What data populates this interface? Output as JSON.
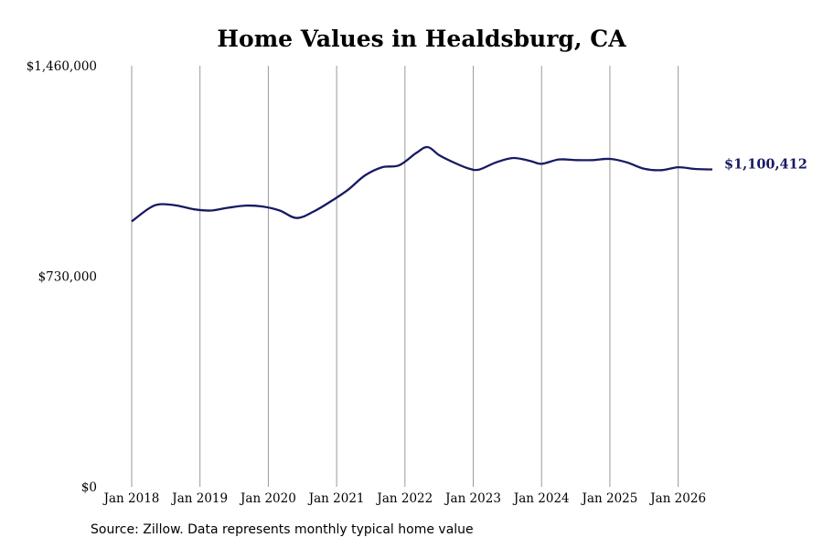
{
  "chart_data": {
    "type": "line",
    "title": "Home Values in Healdsburg, CA",
    "xlabel": "",
    "ylabel": "",
    "ylim": [
      0,
      1460000
    ],
    "y_ticks": [
      {
        "value": 0,
        "label": "$0"
      },
      {
        "value": 730000,
        "label": "$730,000"
      },
      {
        "value": 1460000,
        "label": "$1,460,000"
      }
    ],
    "x_ticks": [
      {
        "value": "2018-01",
        "label": "Jan 2018"
      },
      {
        "value": "2019-01",
        "label": "Jan 2019"
      },
      {
        "value": "2020-01",
        "label": "Jan 2020"
      },
      {
        "value": "2021-01",
        "label": "Jan 2021"
      },
      {
        "value": "2022-01",
        "label": "Jan 2022"
      },
      {
        "value": "2023-01",
        "label": "Jan 2023"
      },
      {
        "value": "2024-01",
        "label": "Jan 2024"
      },
      {
        "value": "2025-01",
        "label": "Jan 2025"
      },
      {
        "value": "2026-01",
        "label": "Jan 2026"
      }
    ],
    "xlim": [
      "2018-01",
      "2026-07"
    ],
    "grid": "vertical",
    "line_color": "#171a63",
    "series": [
      {
        "x": [
          "2018-01",
          "2018-04",
          "2018-06",
          "2018-09",
          "2018-12",
          "2019-03",
          "2019-06",
          "2019-09",
          "2019-12",
          "2020-03",
          "2020-06",
          "2020-09",
          "2020-12",
          "2021-03",
          "2021-06",
          "2021-09",
          "2021-12",
          "2022-03",
          "2022-05",
          "2022-07",
          "2022-09",
          "2022-12",
          "2023-02",
          "2023-05",
          "2023-08",
          "2023-11",
          "2024-01",
          "2024-04",
          "2024-07",
          "2024-10",
          "2025-01",
          "2025-04",
          "2025-07",
          "2025-10",
          "2026-01",
          "2026-04",
          "2026-07"
        ],
        "values": [
          920000,
          965000,
          980000,
          975000,
          962000,
          958000,
          968000,
          975000,
          972000,
          958000,
          932000,
          955000,
          990000,
          1030000,
          1080000,
          1108000,
          1115000,
          1158000,
          1178000,
          1150000,
          1130000,
          1105000,
          1100000,
          1125000,
          1140000,
          1130000,
          1120000,
          1135000,
          1133000,
          1133000,
          1137000,
          1125000,
          1103000,
          1098000,
          1108000,
          1102000,
          1100412
        ]
      }
    ],
    "annotations": [
      {
        "text": "$1,100,412"
      }
    ]
  },
  "footer": {
    "source": "Source: Zillow. Data represents monthly typical home value"
  }
}
